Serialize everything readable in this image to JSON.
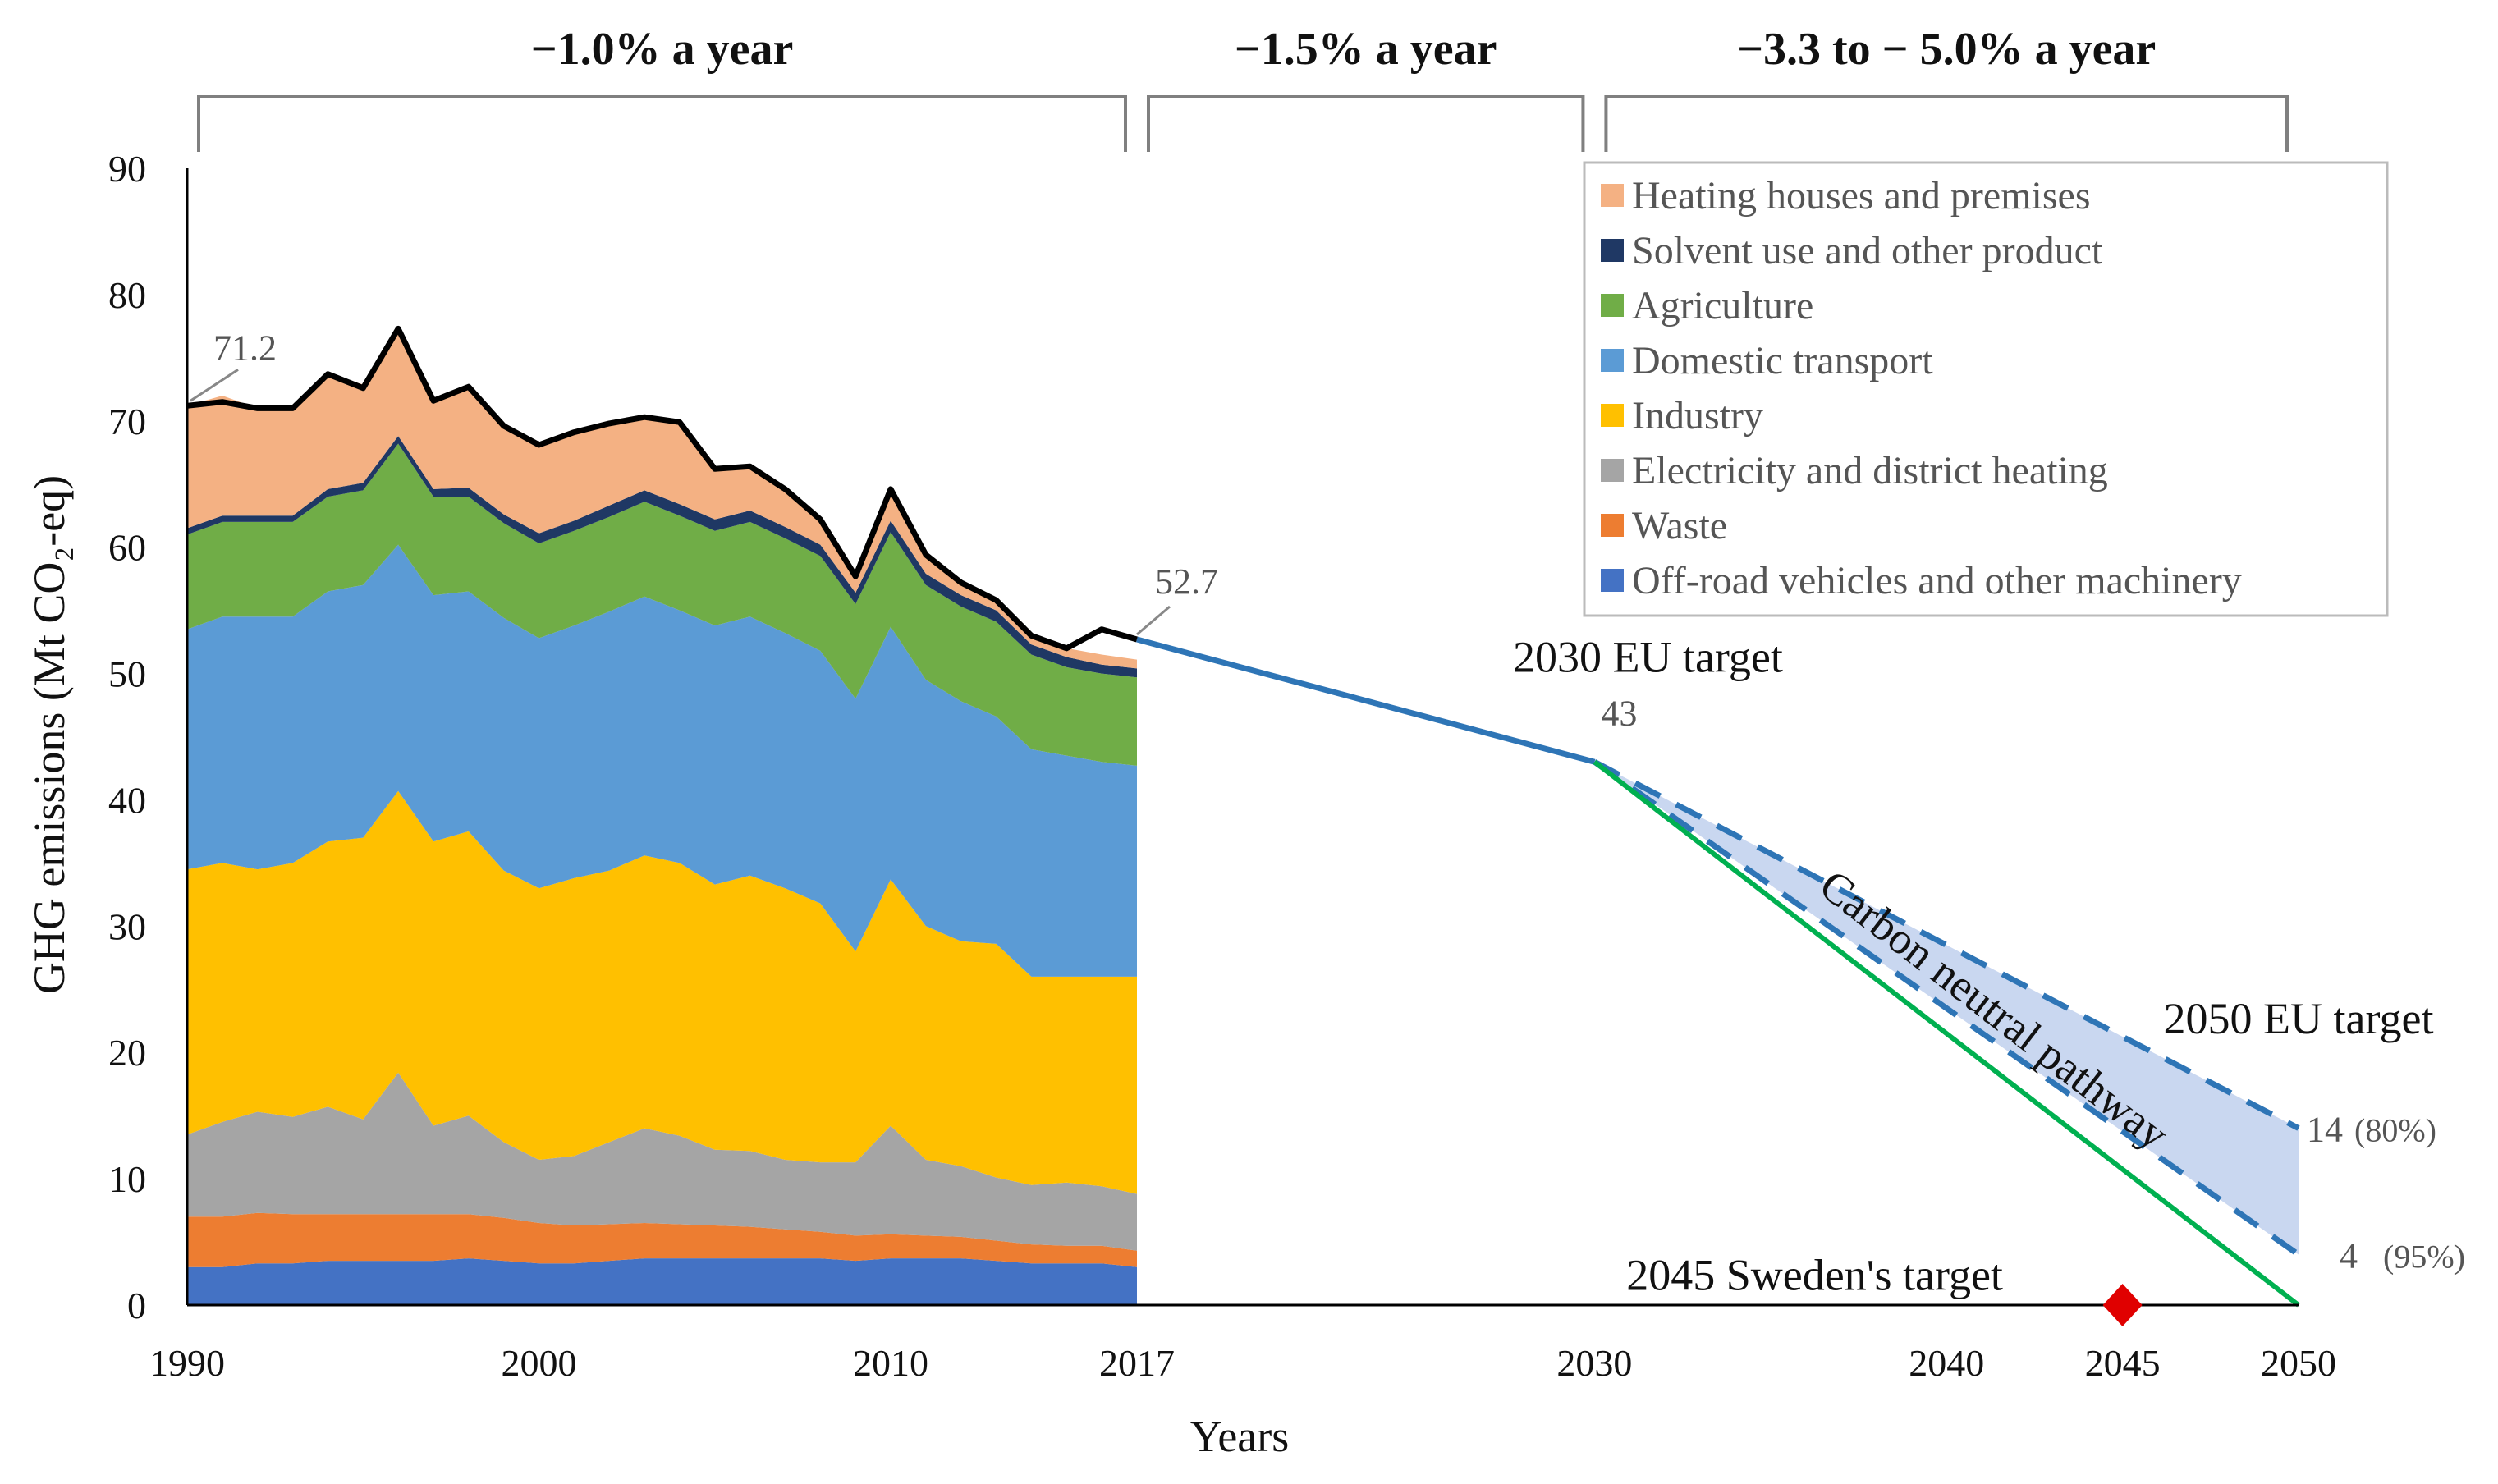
{
  "chart_data": {
    "type": "area",
    "title": "",
    "xlabel": "Years",
    "ylabel": "GHG emissions (Mt CO₂-eq)",
    "ylim": [
      0,
      90
    ],
    "xlim": [
      1990,
      2050
    ],
    "yticks": [
      0,
      10,
      20,
      30,
      40,
      50,
      60,
      70,
      80,
      90
    ],
    "xticks": [
      "1990",
      "2000",
      "2010",
      "2017",
      "2030",
      "2040",
      "2045",
      "2050"
    ],
    "x": [
      1990,
      1991,
      1992,
      1993,
      1994,
      1995,
      1996,
      1997,
      1998,
      1999,
      2000,
      2001,
      2002,
      2003,
      2004,
      2005,
      2006,
      2007,
      2008,
      2009,
      2010,
      2011,
      2012,
      2013,
      2014,
      2015,
      2016,
      2017
    ],
    "series": [
      {
        "name": "Off-road vehicles and other machinery",
        "color": "#4472C4",
        "values": [
          3.0,
          3.0,
          3.3,
          3.3,
          3.5,
          3.5,
          3.5,
          3.5,
          3.7,
          3.5,
          3.3,
          3.3,
          3.5,
          3.7,
          3.7,
          3.7,
          3.7,
          3.7,
          3.7,
          3.5,
          3.7,
          3.7,
          3.7,
          3.5,
          3.3,
          3.3,
          3.3,
          3.0
        ]
      },
      {
        "name": "Waste",
        "color": "#ED7D31",
        "values": [
          4.0,
          4.0,
          4.0,
          3.9,
          3.7,
          3.7,
          3.7,
          3.7,
          3.5,
          3.4,
          3.2,
          3.0,
          2.9,
          2.8,
          2.7,
          2.6,
          2.5,
          2.3,
          2.1,
          2.0,
          1.9,
          1.8,
          1.7,
          1.6,
          1.5,
          1.4,
          1.4,
          1.3
        ]
      },
      {
        "name": "Electricity and district heating",
        "color": "#A5A5A5",
        "values": [
          6.5,
          7.5,
          8.0,
          7.7,
          8.5,
          7.5,
          11.2,
          7.0,
          7.8,
          6.0,
          5.0,
          5.5,
          6.5,
          7.5,
          7.0,
          6.0,
          6.0,
          5.5,
          5.5,
          5.8,
          8.6,
          6.0,
          5.6,
          5.0,
          4.7,
          5.0,
          4.7,
          4.5
        ]
      },
      {
        "name": "Industry",
        "color": "#FFC000",
        "values": [
          21.0,
          20.5,
          19.2,
          20.1,
          21.0,
          22.3,
          22.3,
          22.5,
          22.5,
          21.5,
          21.5,
          22.0,
          21.5,
          21.6,
          21.6,
          21.0,
          21.8,
          21.5,
          20.5,
          16.7,
          19.5,
          18.5,
          17.8,
          18.5,
          16.5,
          16.3,
          16.6,
          17.2
        ]
      },
      {
        "name": "Domestic transport",
        "color": "#5B9BD5",
        "values": [
          19.0,
          19.5,
          20.0,
          19.5,
          19.8,
          20.0,
          19.5,
          19.5,
          19.0,
          20.0,
          19.8,
          20.0,
          20.5,
          20.5,
          20.0,
          20.5,
          20.5,
          20.2,
          20.0,
          20.0,
          20.0,
          19.5,
          19.0,
          18.0,
          18.0,
          17.5,
          17.0,
          16.7
        ]
      },
      {
        "name": "Agriculture",
        "color": "#70AD47",
        "values": [
          7.5,
          7.5,
          7.5,
          7.5,
          7.5,
          7.5,
          8.0,
          7.8,
          7.5,
          7.5,
          7.5,
          7.5,
          7.5,
          7.5,
          7.5,
          7.5,
          7.5,
          7.5,
          7.5,
          7.5,
          7.5,
          7.5,
          7.5,
          7.5,
          7.5,
          7.0,
          7.0,
          7.0
        ]
      },
      {
        "name": "Solvent use and other product",
        "color": "#1F3864",
        "values": [
          0.5,
          0.5,
          0.5,
          0.5,
          0.6,
          0.6,
          0.6,
          0.6,
          0.7,
          0.7,
          0.8,
          0.8,
          0.9,
          0.9,
          0.9,
          0.9,
          0.9,
          0.9,
          0.9,
          0.9,
          0.9,
          0.9,
          0.9,
          0.9,
          0.8,
          0.8,
          0.7,
          0.7
        ]
      },
      {
        "name": "Heating houses and premises",
        "color": "#F4B183",
        "values": [
          9.7,
          9.5,
          8.5,
          8.3,
          9.0,
          7.8,
          8.5,
          7.0,
          8.0,
          7.0,
          7.0,
          7.0,
          6.5,
          5.8,
          6.5,
          4.0,
          3.5,
          3.0,
          2.0,
          1.3,
          2.5,
          1.5,
          1.0,
          0.8,
          0.7,
          0.7,
          0.8,
          0.7
        ]
      }
    ],
    "total_line": {
      "color": "#000000",
      "values": [
        71.2,
        71.5,
        71.0,
        71.0,
        73.7,
        72.6,
        77.3,
        71.6,
        72.7,
        69.6,
        68.1,
        69.1,
        69.8,
        70.3,
        69.9,
        66.2,
        66.4,
        64.6,
        62.2,
        57.7,
        64.6,
        59.4,
        57.2,
        55.8,
        53.0,
        52.0,
        53.5,
        52.7
      ]
    },
    "pathways": {
      "trend_to_2030": {
        "from": [
          2017,
          52.7
        ],
        "to": [
          2030,
          43
        ],
        "color": "#2E75B6"
      },
      "carbon_neutral": {
        "label": "Carbon neutral pathway",
        "from": [
          2030,
          43
        ],
        "to": [
          2050,
          0
        ],
        "color": "#00B050"
      },
      "target_80": {
        "from": [
          2030,
          43
        ],
        "to": [
          2050,
          14
        ],
        "color": "#2E75B6"
      },
      "target_95": {
        "from": [
          2030,
          43
        ],
        "to": [
          2050,
          4
        ],
        "color": "#2E75B6"
      },
      "shade_color": "#C9D7F0"
    },
    "annotations": {
      "start_value": "71.2",
      "value_2017": "52.7",
      "eu2030_label": "2030 EU target",
      "eu2030_value": "43",
      "eu2050_label": "2050 EU target",
      "val80": "14",
      "pct80": "(80%)",
      "val95": "4",
      "pct95": "(95%)",
      "sweden_label": "2045 Sweden's target",
      "sweden_color": "#E00000"
    },
    "periods": [
      {
        "label": "−1.0% a year",
        "from": 1990,
        "to": 2017
      },
      {
        "label": "−1.5% a year",
        "from": 2017,
        "to": 2030
      },
      {
        "label": "−3.3 to − 5.0% a year",
        "from": 2030,
        "to": 2050
      }
    ],
    "legend_position": "top-right",
    "legend_order": [
      "Heating houses and premises",
      "Solvent use and other product",
      "Agriculture",
      "Domestic transport",
      "Industry",
      "Electricity and district heating",
      "Waste",
      "Off-road vehicles and other machinery"
    ]
  }
}
